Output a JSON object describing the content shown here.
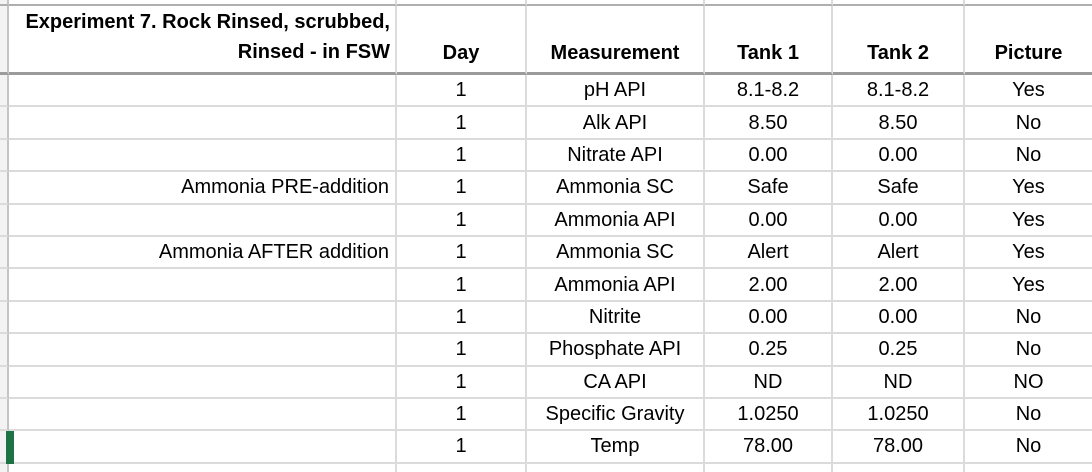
{
  "table": {
    "title_line1": "Experiment 7.  Rock Rinsed, scrubbed,",
    "title_line2": "Rinsed - in FSW",
    "column_headers": {
      "day": "Day",
      "measurement": "Measurement",
      "tank1": "Tank 1",
      "tank2": "Tank 2",
      "picture": "Picture"
    },
    "rows": [
      {
        "label": "",
        "day": "1",
        "measurement": "pH API",
        "tank1": "8.1-8.2",
        "tank2": "8.1-8.2",
        "picture": "Yes"
      },
      {
        "label": "",
        "day": "1",
        "measurement": "Alk API",
        "tank1": "8.50",
        "tank2": "8.50",
        "picture": "No"
      },
      {
        "label": "",
        "day": "1",
        "measurement": "Nitrate API",
        "tank1": "0.00",
        "tank2": "0.00",
        "picture": "No"
      },
      {
        "label": "Ammonia PRE-addition",
        "day": "1",
        "measurement": "Ammonia SC",
        "tank1": "Safe",
        "tank2": "Safe",
        "picture": "Yes"
      },
      {
        "label": "",
        "day": "1",
        "measurement": "Ammonia API",
        "tank1": "0.00",
        "tank2": "0.00",
        "picture": "Yes"
      },
      {
        "label": "Ammonia AFTER addition",
        "day": "1",
        "measurement": "Ammonia SC",
        "tank1": "Alert",
        "tank2": "Alert",
        "picture": "Yes"
      },
      {
        "label": "",
        "day": "1",
        "measurement": "Ammonia API",
        "tank1": "2.00",
        "tank2": "2.00",
        "picture": "Yes"
      },
      {
        "label": "",
        "day": "1",
        "measurement": "Nitrite",
        "tank1": "0.00",
        "tank2": "0.00",
        "picture": "No"
      },
      {
        "label": "",
        "day": "1",
        "measurement": "Phosphate API",
        "tank1": "0.25",
        "tank2": "0.25",
        "picture": "No"
      },
      {
        "label": "",
        "day": "1",
        "measurement": "CA API",
        "tank1": "ND",
        "tank2": "ND",
        "picture": "NO"
      },
      {
        "label": "",
        "day": "1",
        "measurement": "Specific Gravity",
        "tank1": "1.0250",
        "tank2": "1.0250",
        "picture": "No"
      },
      {
        "label": "",
        "day": "1",
        "measurement": "Temp",
        "tank1": "78.00",
        "tank2": "78.00",
        "picture": "No"
      }
    ],
    "colors": {
      "row_marker_green": "#1E7346",
      "gridline": "#DBDBDB",
      "header_border": "#9B9B9B",
      "top_border": "#AFAFAF",
      "margin_strip": "#F3F3F3"
    }
  }
}
